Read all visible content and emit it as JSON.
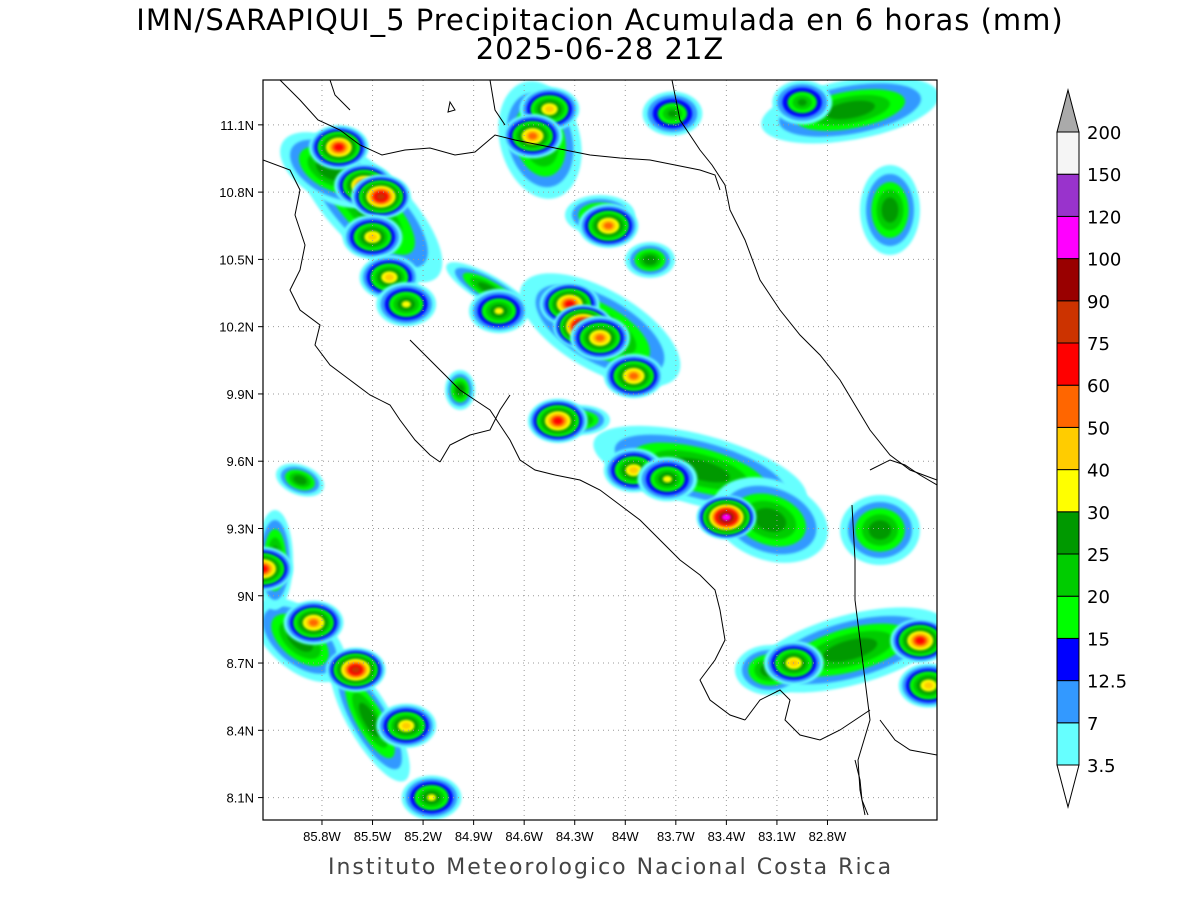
{
  "title": {
    "line1": "IMN/SARAPIQUI_5 Precipitacion Acumulada en 6 horas (mm)",
    "line2": "2025-06-28 21Z"
  },
  "footer": "Instituto Meteorologico Nacional Costa Rica",
  "map": {
    "lon_range": [
      -86.15,
      -82.15
    ],
    "lat_range": [
      8.0,
      11.3
    ],
    "x_ticks": [
      "85.8W",
      "85.5W",
      "85.2W",
      "84.9W",
      "84.6W",
      "84.3W",
      "84W",
      "83.7W",
      "83.4W",
      "83.1W",
      "82.8W"
    ],
    "x_tick_values": [
      -85.8,
      -85.5,
      -85.2,
      -84.9,
      -84.6,
      -84.3,
      -84.0,
      -83.7,
      -83.4,
      -83.1,
      -82.8
    ],
    "y_ticks": [
      "11.1N",
      "10.8N",
      "10.5N",
      "10.2N",
      "9.9N",
      "9.6N",
      "9.3N",
      "9N",
      "8.7N",
      "8.4N",
      "8.1N"
    ],
    "y_tick_values": [
      11.1,
      10.8,
      10.5,
      10.2,
      9.9,
      9.6,
      9.3,
      9.0,
      8.7,
      8.4,
      8.1
    ],
    "grid": "dotted"
  },
  "colorbar": {
    "labels": [
      "3.5",
      "7",
      "12.5",
      "15",
      "20",
      "25",
      "30",
      "40",
      "50",
      "60",
      "75",
      "90",
      "100",
      "120",
      "150",
      "200"
    ],
    "colors": [
      "#66ffff",
      "#3399ff",
      "#0000ff",
      "#00ff00",
      "#00cc00",
      "#009900",
      "#ffff00",
      "#ffcc00",
      "#ff6600",
      "#ff0000",
      "#cc3300",
      "#990000",
      "#ff00ff",
      "#9933cc",
      "#f5f5f5"
    ],
    "top_arrow_color": "#aaaaaa",
    "bottom_arrow_color": "#ffffff"
  },
  "precip_cells": [
    {
      "lon": -85.7,
      "lat": 11.0,
      "level": 9
    },
    {
      "lon": -85.55,
      "lat": 10.83,
      "level": 9
    },
    {
      "lon": -85.45,
      "lat": 10.78,
      "level": 10
    },
    {
      "lon": -85.5,
      "lat": 10.6,
      "level": 7
    },
    {
      "lon": -85.4,
      "lat": 10.42,
      "level": 7
    },
    {
      "lon": -85.3,
      "lat": 10.3,
      "level": 6
    },
    {
      "lon": -84.45,
      "lat": 11.17,
      "level": 7
    },
    {
      "lon": -84.55,
      "lat": 11.05,
      "level": 8
    },
    {
      "lon": -84.1,
      "lat": 10.65,
      "level": 8
    },
    {
      "lon": -84.33,
      "lat": 10.3,
      "level": 9
    },
    {
      "lon": -84.25,
      "lat": 10.2,
      "level": 12
    },
    {
      "lon": -84.15,
      "lat": 10.15,
      "level": 8
    },
    {
      "lon": -83.95,
      "lat": 9.98,
      "level": 8
    },
    {
      "lon": -84.4,
      "lat": 9.78,
      "level": 9
    },
    {
      "lon": -83.95,
      "lat": 9.56,
      "level": 7
    },
    {
      "lon": -83.75,
      "lat": 9.52,
      "level": 6
    },
    {
      "lon": -83.4,
      "lat": 9.35,
      "level": 12
    },
    {
      "lon": -86.15,
      "lat": 9.12,
      "level": 9
    },
    {
      "lon": -85.85,
      "lat": 8.88,
      "level": 8
    },
    {
      "lon": -85.6,
      "lat": 8.67,
      "level": 10
    },
    {
      "lon": -85.3,
      "lat": 8.42,
      "level": 7
    },
    {
      "lon": -85.15,
      "lat": 8.1,
      "level": 6
    },
    {
      "lon": -82.25,
      "lat": 8.8,
      "level": 9
    },
    {
      "lon": -83.0,
      "lat": 8.7,
      "level": 7
    },
    {
      "lon": -82.2,
      "lat": 8.6,
      "level": 7
    },
    {
      "lon": -84.75,
      "lat": 10.27,
      "level": 6
    },
    {
      "lon": -83.72,
      "lat": 11.15,
      "level": 5
    },
    {
      "lon": -82.95,
      "lat": 11.2,
      "level": 5
    }
  ]
}
